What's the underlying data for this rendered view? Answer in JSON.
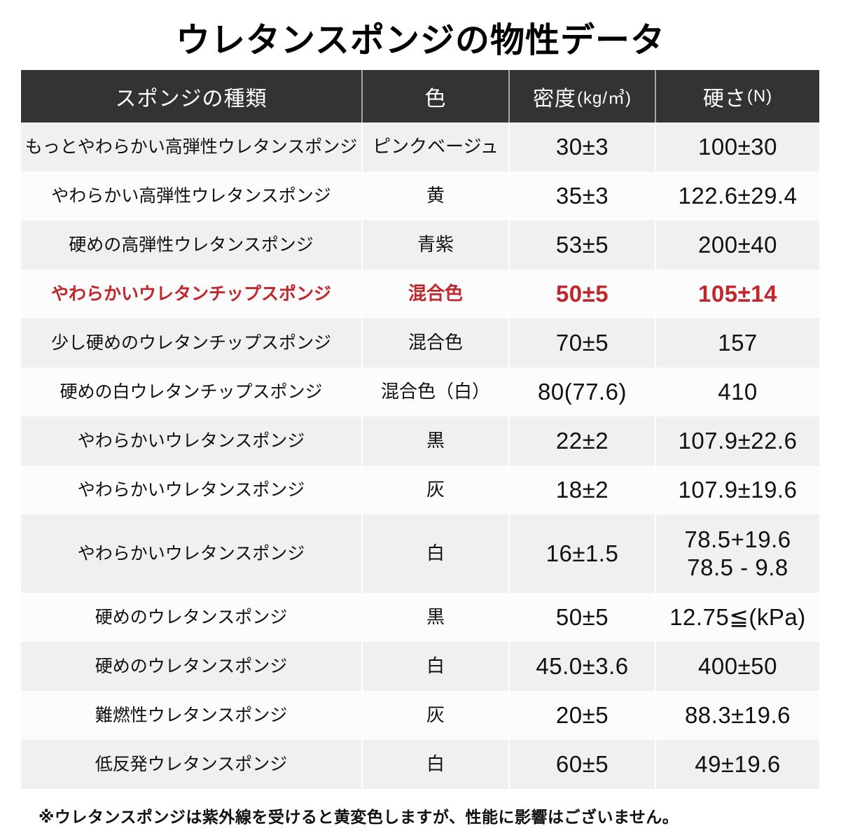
{
  "title": "ウレタンスポンジの物性データ",
  "footnote": "※ウレタンスポンジは紫外線を受けると黄変色しますが、性能に影響はございません。",
  "colors": {
    "header_bg": "#333333",
    "header_text": "#ffffff",
    "row_gray": "#f0f0f0",
    "row_white": "#fcfcfc",
    "highlight_red": "#c1272d",
    "body_text": "#111111"
  },
  "chart_data": {
    "type": "table",
    "title": "ウレタンスポンジの物性データ",
    "note": "※ウレタンスポンジは紫外線を受けると黄変色しますが、性能に影響はございません。",
    "highlight_row_index": 3,
    "columns": [
      {
        "label": "スポンジの種類"
      },
      {
        "label": "色"
      },
      {
        "label": "密度",
        "unit": "(kg/㎥)"
      },
      {
        "label": "硬さ",
        "unit": "(N)"
      }
    ],
    "rows": [
      {
        "type": "もっとやわらかい高弾性ウレタンスポンジ",
        "color": "ピンクベージュ",
        "density": "30±3",
        "hardness": "100±30"
      },
      {
        "type": "やわらかい高弾性ウレタンスポンジ",
        "color": "黄",
        "density": "35±3",
        "hardness": "122.6±29.4"
      },
      {
        "type": "硬めの高弾性ウレタンスポンジ",
        "color": "青紫",
        "density": "53±5",
        "hardness": "200±40"
      },
      {
        "type": "やわらかいウレタンチップスポンジ",
        "color": "混合色",
        "density": "50±5",
        "hardness": "105±14"
      },
      {
        "type": "少し硬めのウレタンチップスポンジ",
        "color": "混合色",
        "density": "70±5",
        "hardness": "157"
      },
      {
        "type": "硬めの白ウレタンチップスポンジ",
        "color": "混合色（白）",
        "density": "80(77.6)",
        "hardness": "410"
      },
      {
        "type": "やわらかいウレタンスポンジ",
        "color": "黒",
        "density": "22±2",
        "hardness": "107.9±22.6"
      },
      {
        "type": "やわらかいウレタンスポンジ",
        "color": "灰",
        "density": "18±2",
        "hardness": "107.9±19.6"
      },
      {
        "type": "やわらかいウレタンスポンジ",
        "color": "白",
        "density": "16±1.5",
        "hardness": "78.5+19.6",
        "hardness2": "78.5 - 9.8"
      },
      {
        "type": "硬めのウレタンスポンジ",
        "color": "黒",
        "density": "50±5",
        "hardness": "12.75≦(kPa)"
      },
      {
        "type": "硬めのウレタンスポンジ",
        "color": "白",
        "density": "45.0±3.6",
        "hardness": "400±50"
      },
      {
        "type": "難燃性ウレタンスポンジ",
        "color": "灰",
        "density": "20±5",
        "hardness": "88.3±19.6"
      },
      {
        "type": "低反発ウレタンスポンジ",
        "color": "白",
        "density": "60±5",
        "hardness": "49±19.6"
      }
    ]
  }
}
